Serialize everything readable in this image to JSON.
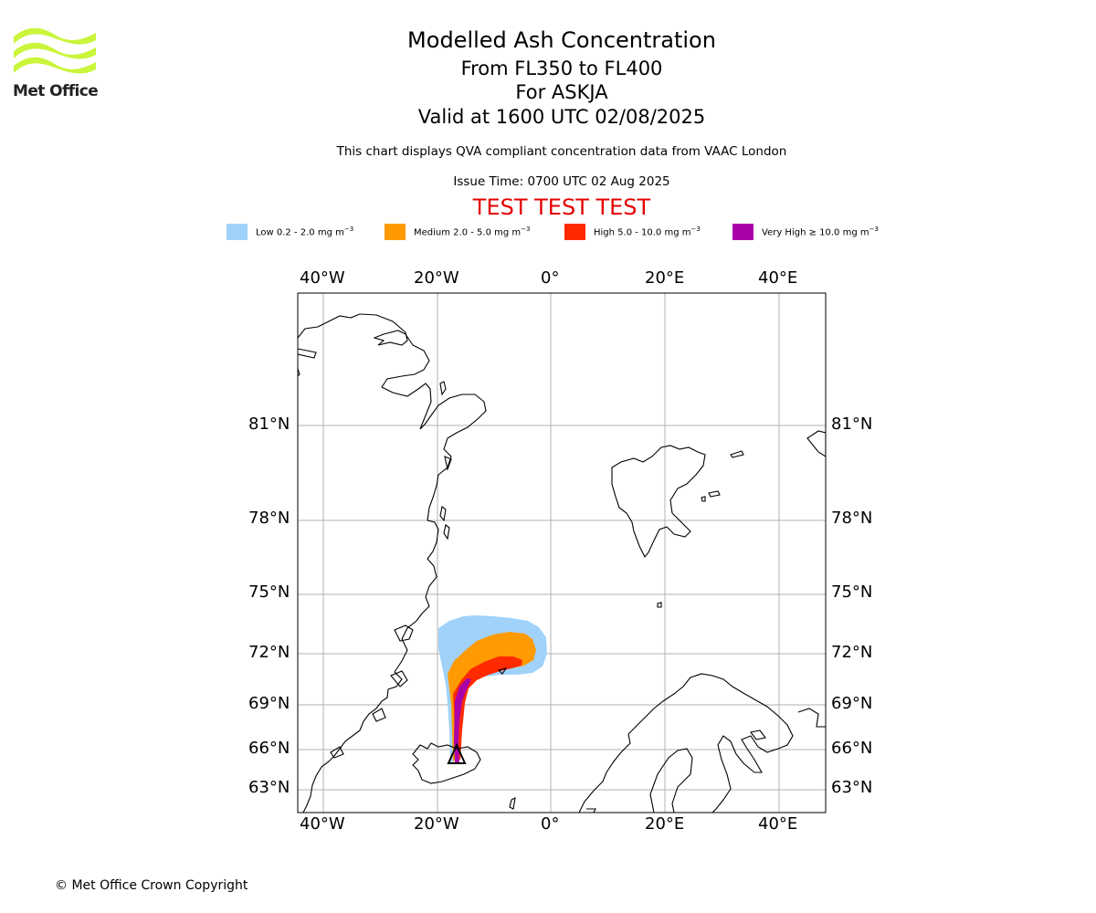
{
  "brand": {
    "logo_name": "Met Office",
    "logo_color": "#c9f53a"
  },
  "header": {
    "title": "Modelled Ash Concentration",
    "levels": "From FL350 to FL400",
    "volcano": "For ASKJA",
    "valid": "Valid at 1600 UTC 02/08/2025",
    "description": "This chart displays QVA compliant concentration data from VAAC London",
    "issue_time": "Issue Time: 0700 UTC 02 Aug 2025",
    "test_banner": "TEST TEST TEST",
    "test_color": "#e30000"
  },
  "legend": [
    {
      "label": "Low 0.2 - 2.0 mg m",
      "sup": "−3",
      "color": "#a0d2fa"
    },
    {
      "label": "Medium 2.0 - 5.0 mg m",
      "sup": "−3",
      "color": "#ff9a00"
    },
    {
      "label": "High 5.0 - 10.0 mg m",
      "sup": "−3",
      "color": "#ff2a00"
    },
    {
      "label": "Very High  ≥  10.0 mg m",
      "sup": "−3",
      "color": "#aa00aa"
    }
  ],
  "map": {
    "longitude_labels": [
      "40°W",
      "20°W",
      "0°",
      "20°E",
      "40°E"
    ],
    "latitude_labels": [
      "81°N",
      "78°N",
      "75°N",
      "72°N",
      "69°N",
      "66°N",
      "63°N"
    ],
    "grid_color": "#b0b0b0",
    "volcano_marker": "triangle"
  },
  "footer": {
    "copyright": "© Met Office Crown Copyright"
  }
}
